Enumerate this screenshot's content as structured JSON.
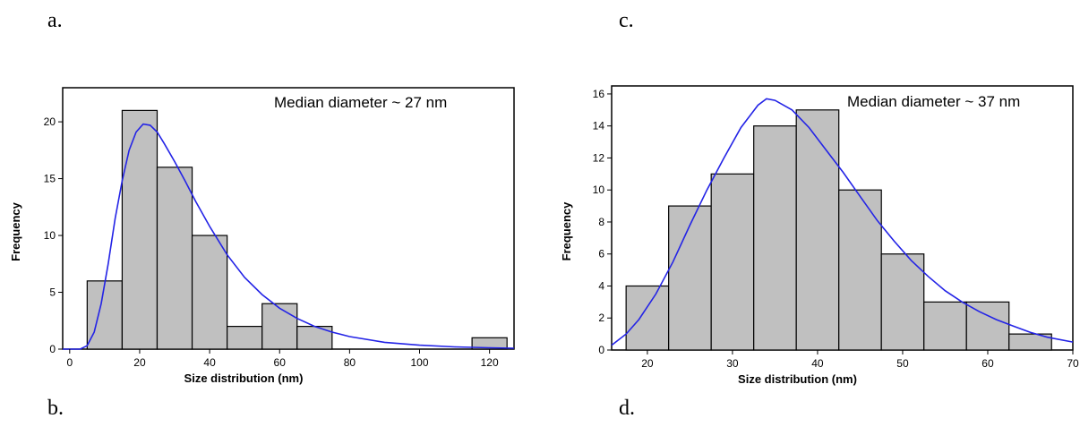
{
  "panel_letters": {
    "a": "a.",
    "b": "b.",
    "c": "c.",
    "d": "d."
  },
  "chart_data": [
    {
      "type": "bar",
      "subtype": "histogram",
      "annotation": "Median diameter ~ 27 nm",
      "xlabel": "Size distribution (nm)",
      "ylabel": "Frequency",
      "xlim": [
        -2,
        127
      ],
      "ylim": [
        0,
        23
      ],
      "xticks": [
        0,
        20,
        40,
        60,
        80,
        100,
        120
      ],
      "yticks": [
        0,
        5,
        10,
        15,
        20
      ],
      "bins": [
        {
          "x0": 5,
          "x1": 15,
          "count": 6
        },
        {
          "x0": 15,
          "x1": 25,
          "count": 21
        },
        {
          "x0": 25,
          "x1": 35,
          "count": 16
        },
        {
          "x0": 35,
          "x1": 45,
          "count": 10
        },
        {
          "x0": 45,
          "x1": 55,
          "count": 2
        },
        {
          "x0": 55,
          "x1": 65,
          "count": 4
        },
        {
          "x0": 65,
          "x1": 75,
          "count": 2
        },
        {
          "x0": 115,
          "x1": 125,
          "count": 1
        }
      ],
      "fit_curve": {
        "color": "#2323e6",
        "points": [
          [
            -2,
            0
          ],
          [
            3,
            0
          ],
          [
            5,
            0.3
          ],
          [
            7,
            1.5
          ],
          [
            9,
            4
          ],
          [
            11,
            7.5
          ],
          [
            13,
            11.5
          ],
          [
            15,
            14.8
          ],
          [
            17,
            17.5
          ],
          [
            19,
            19.1
          ],
          [
            21,
            19.8
          ],
          [
            23,
            19.7
          ],
          [
            25,
            19.1
          ],
          [
            27,
            18.1
          ],
          [
            30,
            16.5
          ],
          [
            33,
            14.8
          ],
          [
            36,
            13
          ],
          [
            40,
            10.8
          ],
          [
            45,
            8.3
          ],
          [
            50,
            6.3
          ],
          [
            55,
            4.8
          ],
          [
            60,
            3.6
          ],
          [
            65,
            2.7
          ],
          [
            70,
            2
          ],
          [
            75,
            1.5
          ],
          [
            80,
            1.1
          ],
          [
            90,
            0.6
          ],
          [
            100,
            0.35
          ],
          [
            110,
            0.2
          ],
          [
            120,
            0.12
          ],
          [
            127,
            0.08
          ]
        ]
      },
      "grid": false,
      "legend": false
    },
    {
      "type": "bar",
      "subtype": "histogram",
      "annotation": "Median diameter ~ 37 nm",
      "xlabel": "Size distribution (nm)",
      "ylabel": "Frequency",
      "xlim": [
        15.8,
        70
      ],
      "ylim": [
        0,
        16.5
      ],
      "xticks": [
        20,
        30,
        40,
        50,
        60,
        70
      ],
      "yticks": [
        0,
        2,
        4,
        6,
        8,
        10,
        12,
        14,
        16
      ],
      "bins": [
        {
          "x0": 17.5,
          "x1": 22.5,
          "count": 4
        },
        {
          "x0": 22.5,
          "x1": 27.5,
          "count": 9
        },
        {
          "x0": 27.5,
          "x1": 32.5,
          "count": 11
        },
        {
          "x0": 32.5,
          "x1": 37.5,
          "count": 14
        },
        {
          "x0": 37.5,
          "x1": 42.5,
          "count": 15
        },
        {
          "x0": 42.5,
          "x1": 47.5,
          "count": 10
        },
        {
          "x0": 47.5,
          "x1": 52.5,
          "count": 6
        },
        {
          "x0": 52.5,
          "x1": 57.5,
          "count": 3
        },
        {
          "x0": 57.5,
          "x1": 62.5,
          "count": 3
        },
        {
          "x0": 62.5,
          "x1": 67.5,
          "count": 1
        }
      ],
      "fit_curve": {
        "color": "#2323e6",
        "points": [
          [
            15.8,
            0.3
          ],
          [
            17.5,
            1
          ],
          [
            19,
            1.9
          ],
          [
            21,
            3.5
          ],
          [
            23,
            5.5
          ],
          [
            25,
            7.8
          ],
          [
            27,
            10
          ],
          [
            29,
            12
          ],
          [
            31,
            13.9
          ],
          [
            33,
            15.3
          ],
          [
            34,
            15.7
          ],
          [
            35,
            15.6
          ],
          [
            37,
            15
          ],
          [
            39,
            13.9
          ],
          [
            41,
            12.5
          ],
          [
            43,
            11.1
          ],
          [
            45,
            9.6
          ],
          [
            47,
            8.1
          ],
          [
            49,
            6.8
          ],
          [
            51,
            5.6
          ],
          [
            53,
            4.6
          ],
          [
            55,
            3.7
          ],
          [
            57,
            3
          ],
          [
            59,
            2.4
          ],
          [
            61,
            1.9
          ],
          [
            63,
            1.5
          ],
          [
            65,
            1.1
          ],
          [
            67,
            0.8
          ],
          [
            70,
            0.5
          ]
        ]
      },
      "grid": false,
      "legend": false
    }
  ]
}
